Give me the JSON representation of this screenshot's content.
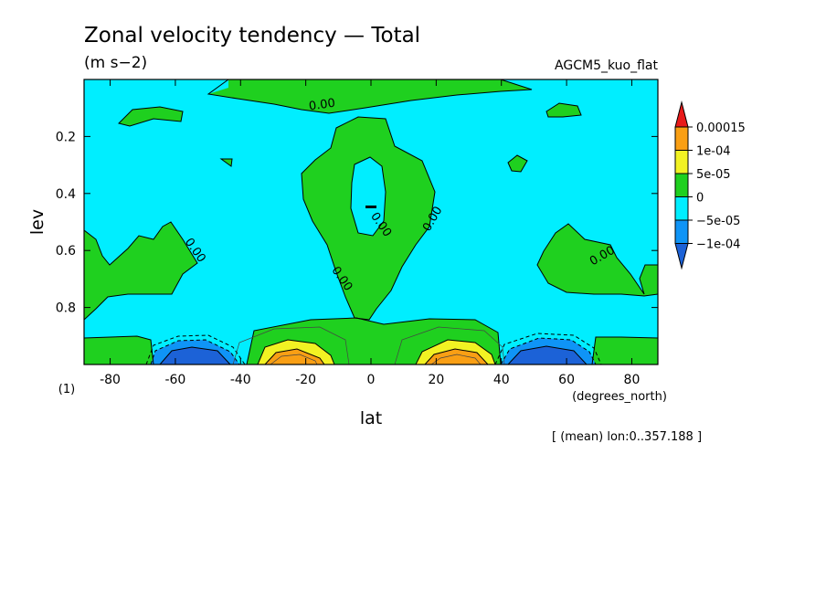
{
  "chart_data": {
    "type": "contour",
    "title": "Zonal velocity tendency — Total",
    "units": "(m s−2)",
    "experiment": "AGCM5_kuo_flat",
    "xlabel": "lat",
    "xunits": "(degrees_north)",
    "ylabel": "lev",
    "ylabel_units": "(1)",
    "footnote": "[ (mean) lon:0..357.188 ]",
    "xlim": [
      -88,
      88
    ],
    "ylim": [
      0.0,
      1.0
    ],
    "y_inverted": true,
    "x_ticks": [
      -80,
      -60,
      -40,
      -20,
      0,
      20,
      40,
      60,
      80
    ],
    "x_tick_labels": [
      "-80",
      "-60",
      "-40",
      "-20",
      "0",
      "20",
      "40",
      "60",
      "80"
    ],
    "y_ticks": [
      0.2,
      0.4,
      0.6,
      0.8
    ],
    "y_tick_labels": [
      "0.2",
      "0.4",
      "0.6",
      "0.8"
    ],
    "contour_labels": [
      {
        "text": "0.00",
        "lat": -15,
        "lev": 0.09,
        "angle": -8
      },
      {
        "text": "0.00",
        "lat": 3,
        "lev": 0.51,
        "angle": 55
      },
      {
        "text": "0.00",
        "lat": 19,
        "lev": 0.49,
        "angle": -60
      },
      {
        "text": "0.00",
        "lat": -54,
        "lev": 0.6,
        "angle": 55
      },
      {
        "text": "0.00",
        "lat": -9,
        "lev": 0.7,
        "angle": 55
      },
      {
        "text": "0.00",
        "lat": 71,
        "lev": 0.62,
        "angle": -30
      }
    ],
    "colorbar": {
      "levels": [
        "0.00015",
        "1e-04",
        "5e-05",
        "0",
        "−5e-05",
        "−1e-04"
      ],
      "colors": [
        "#e81a1a",
        "#f99f14",
        "#f2f223",
        "#1fd01f",
        "#00eeff",
        "#0f94f6",
        "#1c62d7"
      ]
    },
    "fill_colors": {
      "neg_strong": "#1c62d7",
      "neg": "#0f94f6",
      "neg_small": "#00eeff",
      "pos_small": "#1fd01f",
      "pos": "#f2f223",
      "pos_strong": "#f99f14"
    }
  }
}
